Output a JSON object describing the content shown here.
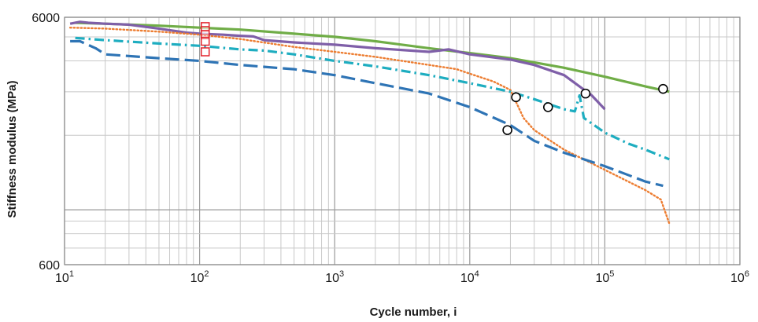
{
  "chart_data": {
    "type": "line",
    "title": "",
    "xlabel": "Cycle number, i",
    "ylabel": "Stiffness modulus (MPa)",
    "x_scale": "log",
    "y_scale": "log",
    "xlim": [
      10,
      1000000
    ],
    "ylim": [
      600,
      6000
    ],
    "grid": true,
    "x_ticks": [
      {
        "base": "10",
        "exp": "1"
      },
      {
        "base": "10",
        "exp": "2"
      },
      {
        "base": "10",
        "exp": "3"
      },
      {
        "base": "10",
        "exp": "4"
      },
      {
        "base": "10",
        "exp": "5"
      },
      {
        "base": "10",
        "exp": "6"
      }
    ],
    "y_ticks": [
      "600",
      "6000"
    ],
    "series": [
      {
        "color": "#70ad47",
        "style": "solid",
        "points": [
          [
            12,
            5700
          ],
          [
            20,
            5650
          ],
          [
            50,
            5550
          ],
          [
            100,
            5450
          ],
          [
            200,
            5350
          ],
          [
            500,
            5150
          ],
          [
            1000,
            5000
          ],
          [
            2000,
            4800
          ],
          [
            5000,
            4500
          ],
          [
            10000,
            4300
          ],
          [
            20000,
            4100
          ],
          [
            50000,
            3750
          ],
          [
            100000,
            3450
          ],
          [
            200000,
            3150
          ],
          [
            300000,
            3000
          ]
        ],
        "failure_point": [
          270000,
          3080
        ]
      },
      {
        "color": "#7f5fa8",
        "style": "solid",
        "points": [
          [
            11,
            5650
          ],
          [
            13,
            5750
          ],
          [
            15,
            5700
          ],
          [
            20,
            5650
          ],
          [
            30,
            5600
          ],
          [
            50,
            5400
          ],
          [
            80,
            5200
          ],
          [
            100,
            5150
          ],
          [
            150,
            5100
          ],
          [
            200,
            5050
          ],
          [
            250,
            5020
          ],
          [
            300,
            4850
          ],
          [
            500,
            4750
          ],
          [
            1000,
            4650
          ],
          [
            2000,
            4500
          ],
          [
            5000,
            4350
          ],
          [
            7000,
            4450
          ],
          [
            10000,
            4250
          ],
          [
            20000,
            4050
          ],
          [
            30000,
            3850
          ],
          [
            50000,
            3500
          ],
          [
            80000,
            2900
          ],
          [
            100000,
            2550
          ]
        ],
        "failure_point": [
          72000,
          2950
        ]
      },
      {
        "color": "#ed7d31",
        "style": "dotted",
        "points": [
          [
            11,
            5450
          ],
          [
            20,
            5400
          ],
          [
            50,
            5250
          ],
          [
            100,
            5100
          ],
          [
            200,
            4900
          ],
          [
            500,
            4550
          ],
          [
            1000,
            4350
          ],
          [
            2000,
            4150
          ],
          [
            5000,
            3850
          ],
          [
            8000,
            3700
          ],
          [
            10000,
            3550
          ],
          [
            15000,
            3300
          ],
          [
            20000,
            3050
          ],
          [
            25000,
            2350
          ],
          [
            30000,
            2100
          ],
          [
            50000,
            1750
          ],
          [
            100000,
            1450
          ],
          [
            200000,
            1200
          ],
          [
            260000,
            1100
          ],
          [
            300000,
            880
          ]
        ]
      },
      {
        "color": "#1eadc0",
        "style": "dashdot",
        "points": [
          [
            12,
            4950
          ],
          [
            20,
            4850
          ],
          [
            50,
            4700
          ],
          [
            100,
            4600
          ],
          [
            200,
            4450
          ],
          [
            300,
            4400
          ],
          [
            500,
            4250
          ],
          [
            1000,
            4000
          ],
          [
            2000,
            3800
          ],
          [
            5000,
            3500
          ],
          [
            10000,
            3250
          ],
          [
            20000,
            3000
          ],
          [
            30000,
            2800
          ],
          [
            50000,
            2550
          ],
          [
            60000,
            2500
          ],
          [
            65000,
            2900
          ],
          [
            70000,
            2350
          ],
          [
            100000,
            2050
          ],
          [
            150000,
            1850
          ],
          [
            200000,
            1750
          ],
          [
            300000,
            1600
          ]
        ],
        "failure_point": [
          38000,
          2600
        ]
      },
      {
        "color": "#2e74b5",
        "style": "dashed",
        "points": [
          [
            11,
            4800
          ],
          [
            13,
            4800
          ],
          [
            17,
            4500
          ],
          [
            20,
            4250
          ],
          [
            50,
            4100
          ],
          [
            100,
            4000
          ],
          [
            200,
            3850
          ],
          [
            500,
            3700
          ],
          [
            1000,
            3500
          ],
          [
            2000,
            3250
          ],
          [
            5000,
            2950
          ],
          [
            10000,
            2600
          ],
          [
            20000,
            2200
          ],
          [
            30000,
            1900
          ],
          [
            50000,
            1700
          ],
          [
            100000,
            1500
          ],
          [
            200000,
            1300
          ],
          [
            270000,
            1250
          ]
        ],
        "failure_point": [
          19000,
          2100
        ]
      }
    ],
    "extra_failure_points": [
      [
        22000,
        2850
      ]
    ],
    "initial_markers": {
      "color": "#e3232c",
      "points": [
        [
          110,
          5500
        ],
        [
          110,
          5300
        ],
        [
          110,
          5100
        ],
        [
          110,
          4800
        ],
        [
          110,
          4350
        ]
      ]
    }
  }
}
